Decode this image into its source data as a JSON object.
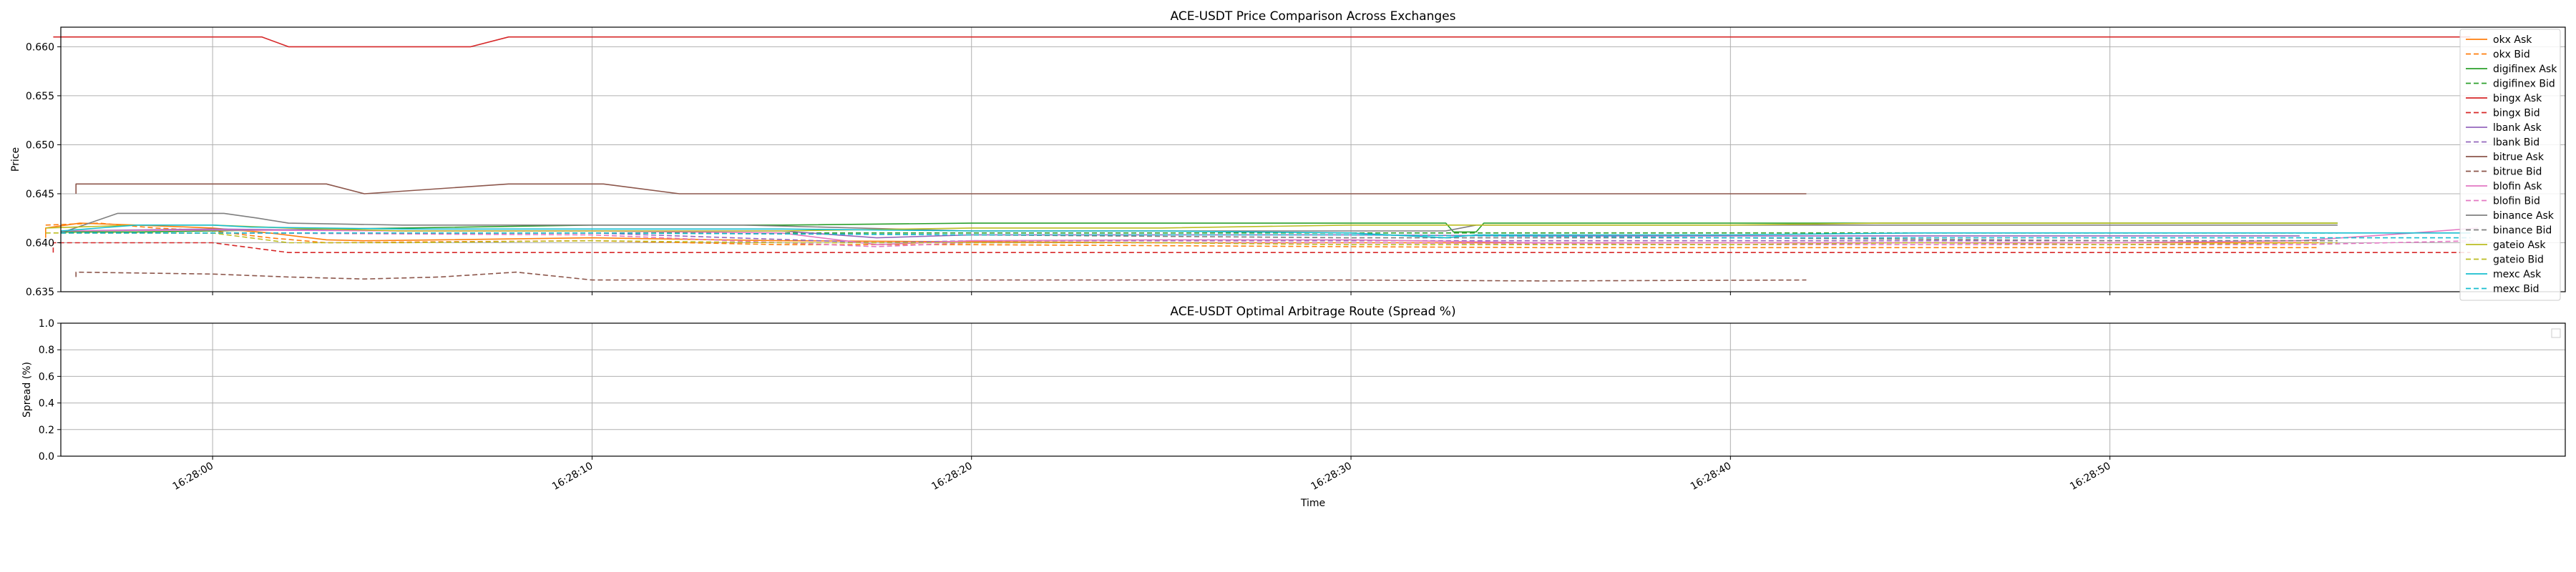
{
  "chart_data": [
    {
      "type": "line",
      "title": "ACE-USDT Price Comparison Across Exchanges",
      "xlabel": "",
      "ylabel": "Price",
      "ylim": [
        0.635,
        0.662
      ],
      "yticks": [
        "0.635",
        "0.640",
        "0.645",
        "0.650",
        "0.655",
        "0.660"
      ],
      "xlim_seconds": [
        -4,
        62
      ],
      "grid": true,
      "legend_position": "upper right, outside",
      "series": [
        {
          "name": "okx Ask",
          "color": "#ff7f0e",
          "dash": false,
          "x": [
            -4.4,
            -4.4,
            -3.5,
            -2,
            0,
            1.5,
            3,
            4,
            6,
            10,
            15,
            20,
            25,
            30,
            35,
            40,
            45,
            50,
            55.5
          ],
          "y": [
            0.6405,
            0.6415,
            0.642,
            0.6418,
            0.6415,
            0.641,
            0.6403,
            0.6402,
            0.6403,
            0.6405,
            0.6402,
            0.6401,
            0.64,
            0.64,
            0.64,
            0.64,
            0.64,
            0.64,
            0.64
          ]
        },
        {
          "name": "okx Bid",
          "color": "#ff7f0e",
          "dash": true,
          "x": [
            -4.4,
            -3,
            -1.5,
            0,
            1.5,
            3,
            6,
            10,
            15,
            20,
            25,
            30,
            35,
            40,
            45,
            50,
            55.5
          ],
          "y": [
            0.6418,
            0.642,
            0.6415,
            0.6412,
            0.6405,
            0.64,
            0.6401,
            0.6402,
            0.6398,
            0.6398,
            0.6397,
            0.6396,
            0.6395,
            0.6395,
            0.6395,
            0.6395,
            0.6395
          ]
        },
        {
          "name": "digifinex Ask",
          "color": "#2ca02c",
          "dash": false,
          "x": [
            -4,
            -2,
            0,
            5,
            10,
            15,
            20,
            25,
            29.5,
            32.5,
            32.7,
            33.3,
            33.5,
            40,
            44,
            50,
            56
          ],
          "y": [
            0.6411,
            0.6411,
            0.6412,
            0.6415,
            0.6418,
            0.6418,
            0.642,
            0.642,
            0.642,
            0.642,
            0.6411,
            0.6411,
            0.642,
            0.642,
            0.642,
            0.642,
            0.642
          ]
        },
        {
          "name": "digifinex Bid",
          "color": "#2ca02c",
          "dash": true,
          "x": [
            -4,
            0,
            10,
            20,
            30,
            40,
            50,
            56
          ],
          "y": [
            0.641,
            0.641,
            0.641,
            0.641,
            0.641,
            0.641,
            0.641,
            0.641
          ]
        },
        {
          "name": "bingx Ask",
          "color": "#d62728",
          "dash": false,
          "x": [
            -4.2,
            1.3,
            2,
            6.8,
            7.8,
            59.5
          ],
          "y": [
            0.661,
            0.661,
            0.66,
            0.66,
            0.661,
            0.661
          ]
        },
        {
          "name": "bingx Bid",
          "color": "#d62728",
          "dash": true,
          "x": [
            -4.2,
            -4.2,
            -3.8,
            0,
            2,
            4,
            6,
            7.5,
            8.5,
            10,
            20,
            30,
            40,
            50,
            59.5
          ],
          "y": [
            0.639,
            0.64,
            0.64,
            0.64,
            0.639,
            0.639,
            0.639,
            0.639,
            0.639,
            0.639,
            0.639,
            0.639,
            0.639,
            0.639,
            0.639
          ]
        },
        {
          "name": "lbank Ask",
          "color": "#9467bd",
          "dash": false,
          "x": [
            -4,
            0,
            5,
            10,
            15,
            17.5,
            20,
            25,
            30,
            35,
            40,
            45,
            50,
            55
          ],
          "y": [
            0.6412,
            0.6414,
            0.6412,
            0.6412,
            0.6412,
            0.6405,
            0.6408,
            0.6408,
            0.6408,
            0.6407,
            0.6407,
            0.6407,
            0.6407,
            0.6407
          ]
        },
        {
          "name": "lbank Bid",
          "color": "#9467bd",
          "dash": true,
          "x": [
            -4,
            0,
            10,
            17.5,
            20,
            30,
            40,
            50,
            55
          ],
          "y": [
            0.641,
            0.641,
            0.641,
            0.64,
            0.6402,
            0.6402,
            0.6402,
            0.6402,
            0.6402
          ]
        },
        {
          "name": "bitrue Ask",
          "color": "#8c564b",
          "dash": false,
          "x": [
            -3.6,
            -3.6,
            3,
            4,
            7.8,
            10.3,
            12.3,
            42
          ],
          "y": [
            0.645,
            0.646,
            0.646,
            0.645,
            0.646,
            0.646,
            0.645,
            0.645
          ]
        },
        {
          "name": "bitrue Bid",
          "color": "#8c564b",
          "dash": true,
          "x": [
            -3.6,
            -3.6,
            0,
            2,
            4,
            6,
            8,
            10,
            15,
            20,
            25,
            30,
            35,
            42
          ],
          "y": [
            0.6365,
            0.637,
            0.6368,
            0.6365,
            0.6363,
            0.6365,
            0.637,
            0.6362,
            0.6362,
            0.6362,
            0.6362,
            0.6362,
            0.6361,
            0.6362
          ]
        },
        {
          "name": "blofin Ask",
          "color": "#e377c2",
          "dash": false,
          "x": [
            -4,
            0,
            5,
            10,
            15,
            17.5,
            20,
            25,
            30,
            35,
            40,
            45,
            50,
            55,
            58,
            59.7
          ],
          "y": [
            0.6412,
            0.6413,
            0.6412,
            0.6412,
            0.641,
            0.6398,
            0.6402,
            0.6403,
            0.6403,
            0.64,
            0.64,
            0.64,
            0.64,
            0.6402,
            0.641,
            0.6415
          ]
        },
        {
          "name": "blofin Bid",
          "color": "#e377c2",
          "dash": true,
          "x": [
            -4,
            0,
            10,
            17.5,
            20,
            30,
            40,
            50,
            55,
            59.7
          ],
          "y": [
            0.641,
            0.641,
            0.6408,
            0.6396,
            0.64,
            0.64,
            0.6398,
            0.6398,
            0.6398,
            0.6402
          ]
        },
        {
          "name": "binance Ask",
          "color": "#7f7f7f",
          "dash": false,
          "x": [
            -4,
            -2.5,
            0,
            0.3,
            1.2,
            2,
            5,
            10,
            14,
            20,
            25,
            30,
            32.5,
            33.3,
            40,
            44,
            50,
            56
          ],
          "y": [
            0.641,
            0.643,
            0.643,
            0.643,
            0.6425,
            0.642,
            0.6418,
            0.6418,
            0.6418,
            0.6412,
            0.6412,
            0.6412,
            0.6412,
            0.6418,
            0.6418,
            0.6418,
            0.6418,
            0.6418
          ]
        },
        {
          "name": "binance Bid",
          "color": "#7f7f7f",
          "dash": true,
          "x": [
            -4,
            0,
            10,
            20,
            30,
            40,
            50,
            56
          ],
          "y": [
            0.641,
            0.641,
            0.641,
            0.6408,
            0.6405,
            0.6405,
            0.6402,
            0.6402
          ]
        },
        {
          "name": "gateio Ask",
          "color": "#bcbd22",
          "dash": false,
          "x": [
            -4.4,
            -2,
            0,
            2,
            5,
            10,
            15,
            20,
            25,
            30,
            33,
            40,
            44,
            50,
            56
          ],
          "y": [
            0.6415,
            0.6418,
            0.6418,
            0.6415,
            0.6412,
            0.6412,
            0.6412,
            0.6415,
            0.6415,
            0.6418,
            0.6418,
            0.6418,
            0.642,
            0.642,
            0.642
          ]
        },
        {
          "name": "gateio Bid",
          "color": "#bcbd22",
          "dash": true,
          "x": [
            -4.4,
            0,
            2,
            5,
            10,
            15,
            20,
            25,
            30,
            35,
            40,
            45,
            50,
            56
          ],
          "y": [
            0.641,
            0.641,
            0.64,
            0.64,
            0.6402,
            0.64,
            0.64,
            0.64,
            0.6398,
            0.6398,
            0.6398,
            0.64,
            0.6398,
            0.64
          ]
        },
        {
          "name": "mexc Ask",
          "color": "#17becf",
          "dash": false,
          "x": [
            -4,
            -2,
            0,
            1,
            5,
            10,
            15,
            20,
            25,
            30,
            32.5,
            33.3,
            40,
            45,
            50,
            55,
            59.5
          ],
          "y": [
            0.6412,
            0.6418,
            0.6418,
            0.6416,
            0.6414,
            0.6414,
            0.6414,
            0.6412,
            0.6412,
            0.641,
            0.6405,
            0.6408,
            0.6408,
            0.641,
            0.641,
            0.641,
            0.641
          ]
        },
        {
          "name": "mexc Bid",
          "color": "#17becf",
          "dash": true,
          "x": [
            -4,
            0,
            10,
            20,
            30,
            40,
            50,
            59.5
          ],
          "y": [
            0.641,
            0.641,
            0.641,
            0.6408,
            0.6408,
            0.6405,
            0.6405,
            0.6405
          ]
        }
      ]
    },
    {
      "type": "line",
      "title": "ACE-USDT Optimal Arbitrage Route (Spread %)",
      "xlabel": "Time",
      "ylabel": "Spread (%)",
      "ylim": [
        0.0,
        1.0
      ],
      "yticks": [
        "0.0",
        "0.2",
        "0.4",
        "0.6",
        "0.8",
        "1.0"
      ],
      "xtick_values": [
        0,
        10,
        20,
        30,
        40,
        50
      ],
      "xticks": [
        "16:28:00",
        "16:28:10",
        "16:28:20",
        "16:28:30",
        "16:28:40",
        "16:28:50"
      ],
      "xlim_seconds": [
        -4,
        62
      ],
      "grid": true,
      "legend_position": "upper right",
      "series": []
    }
  ]
}
